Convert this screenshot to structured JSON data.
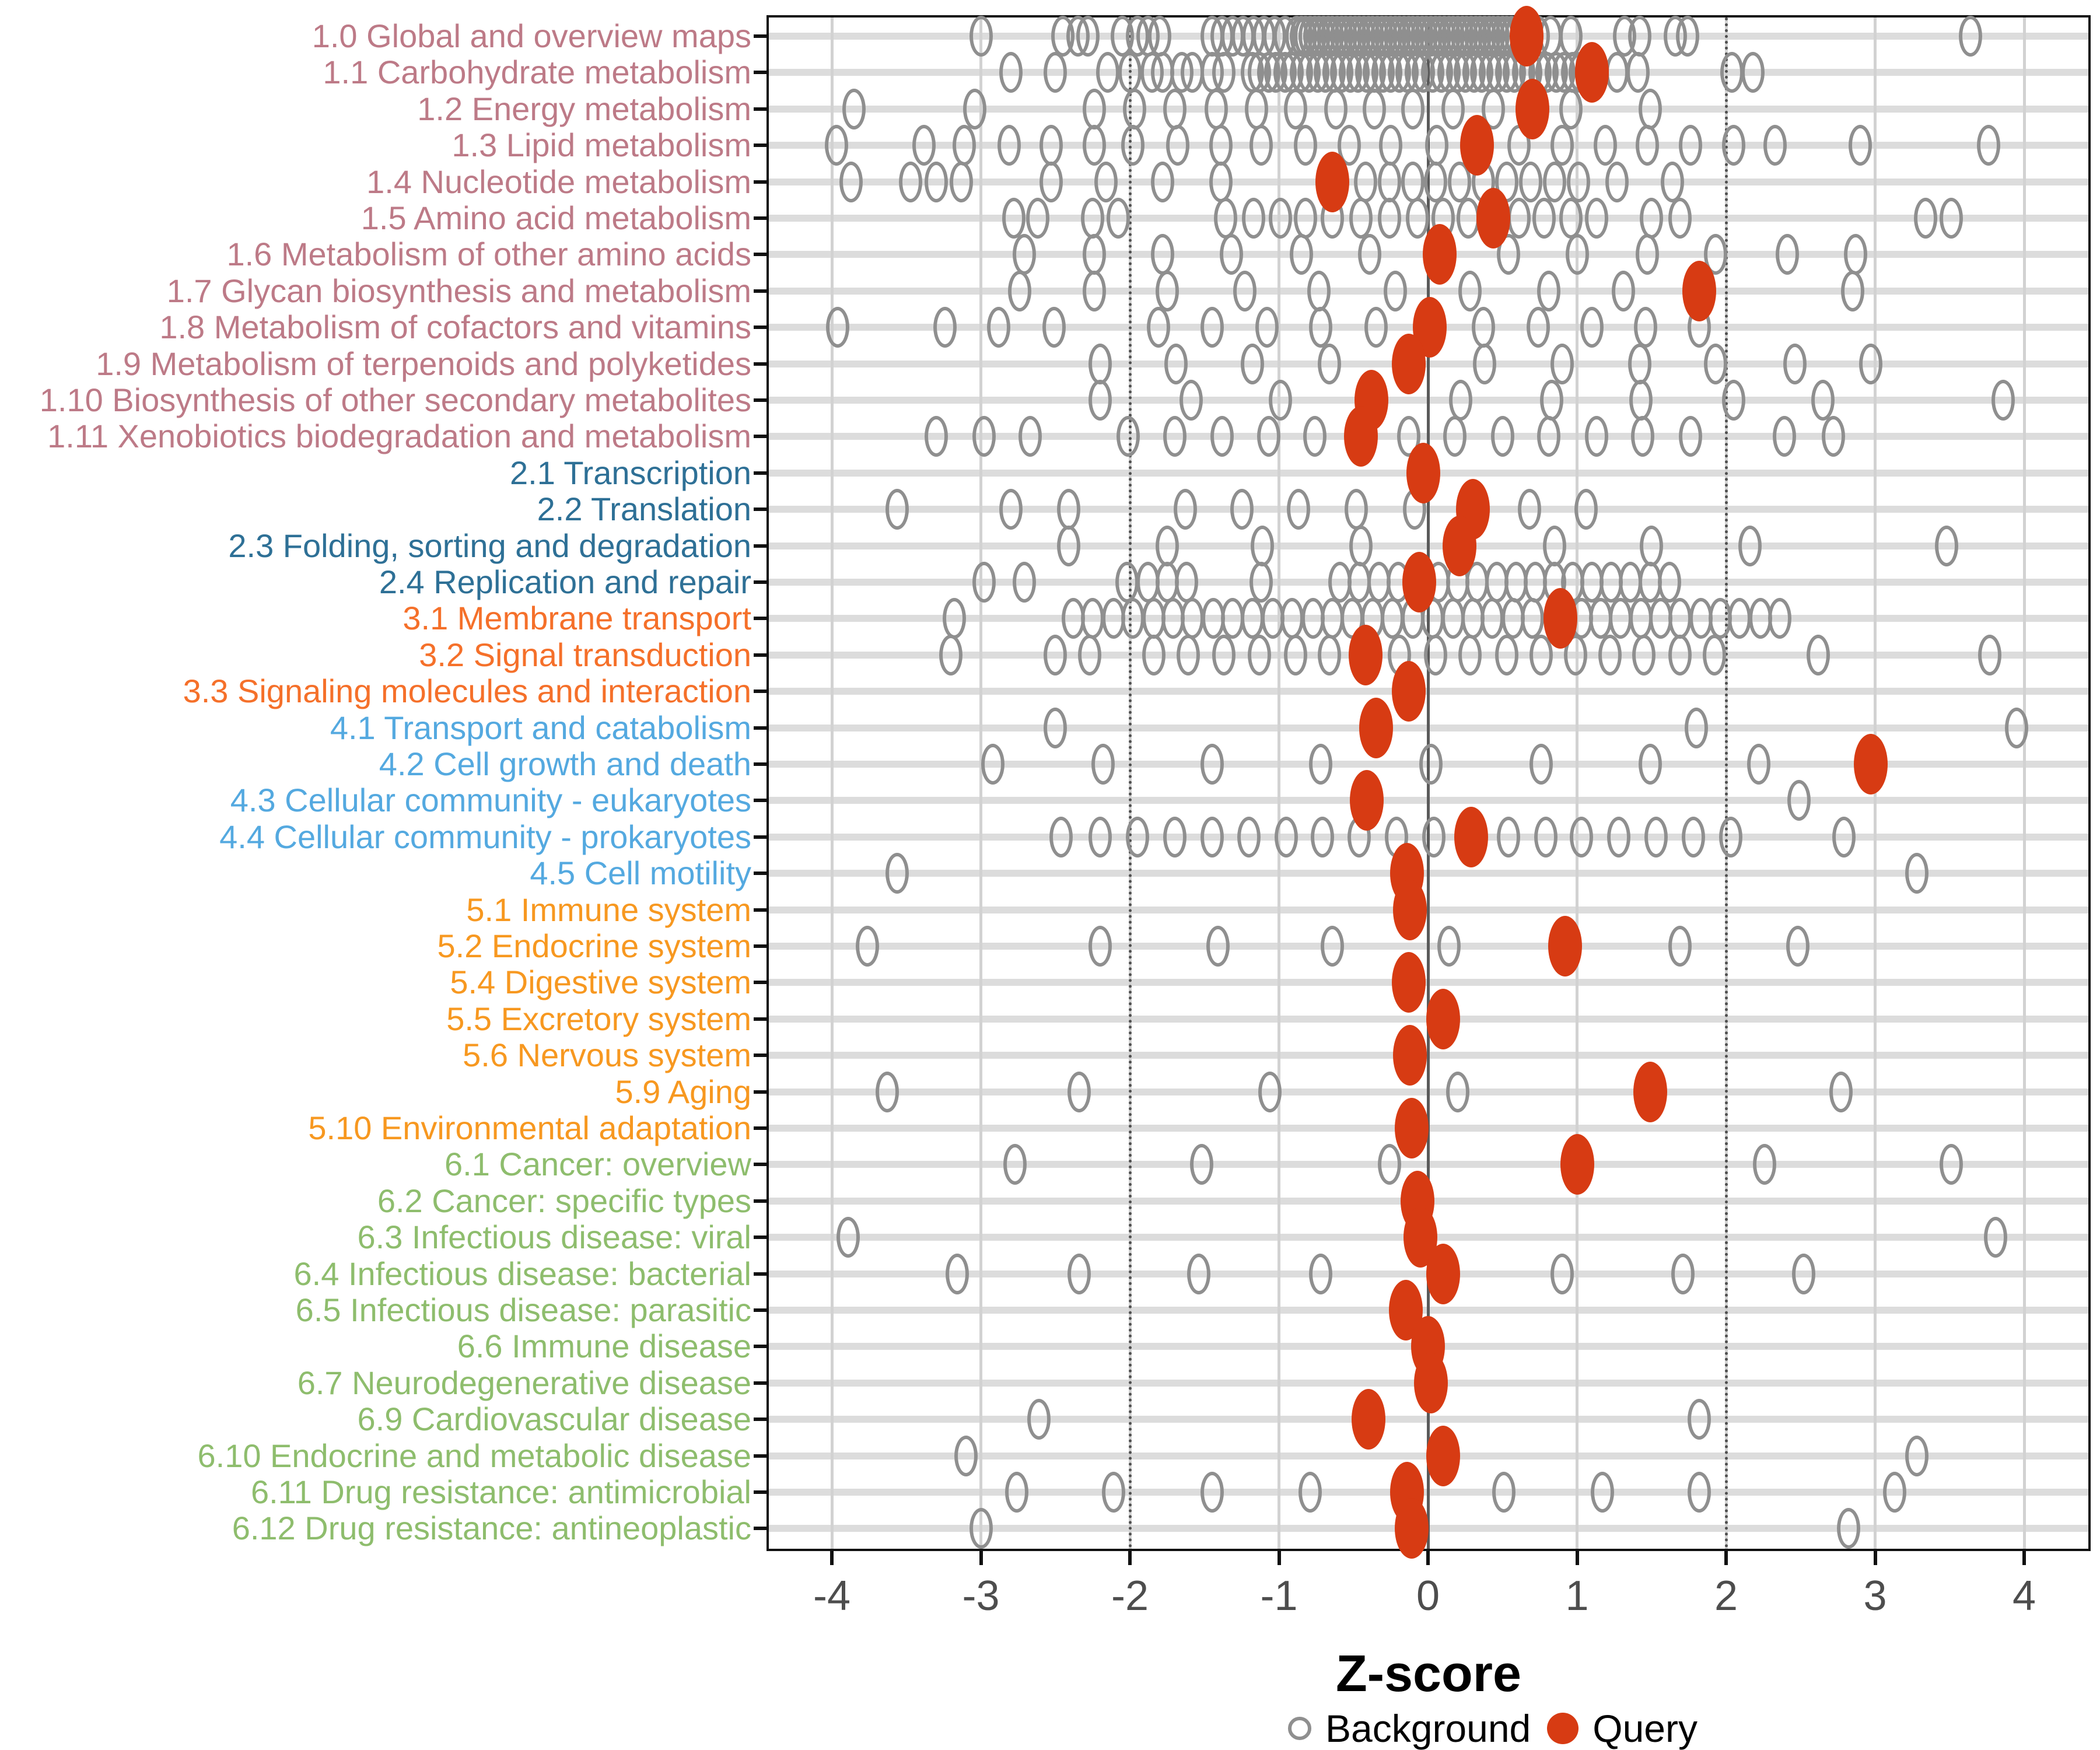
{
  "chart_data": {
    "type": "scatter",
    "title": "",
    "xlabel": "Z-score",
    "x_ticks": [
      "-4",
      "-3",
      "-2",
      "-1",
      "0",
      "1",
      "2",
      "3",
      "4"
    ],
    "x_tick_values": [
      -4,
      -3,
      -2,
      -1,
      0,
      1,
      2,
      3,
      4
    ],
    "xlim": [
      -4.42,
      4.42
    ],
    "grid": true,
    "reference_lines": {
      "solid": [
        0
      ],
      "dotted": [
        -2,
        2
      ]
    },
    "legend": {
      "background": "Background",
      "query": "Query",
      "position": "bottom"
    },
    "colors": {
      "query": "#d73b13",
      "background_stroke": "#8f8f8f",
      "group_colors": {
        "1": "#bd7a87",
        "2": "#2e7096",
        "3": "#f5702a",
        "4": "#54a9e0",
        "5": "#f79820",
        "6": "#8ebd6d"
      }
    },
    "rows": [
      {
        "label": "1.0 Global and overview maps",
        "group": "1",
        "query": 0.66,
        "background": [
          -3.0,
          -2.45,
          -2.35,
          -2.28,
          -2.05,
          -1.95,
          -1.88,
          -1.8,
          -1.45,
          -1.38,
          -1.31,
          -1.24,
          -1.17,
          -1.1,
          -1.03,
          -0.96,
          -0.88,
          -0.85,
          -0.82,
          -0.79,
          -0.76,
          -0.73,
          -0.7,
          -0.67,
          -0.64,
          -0.61,
          -0.58,
          -0.55,
          -0.52,
          -0.49,
          -0.46,
          -0.43,
          -0.4,
          -0.37,
          -0.34,
          -0.31,
          -0.28,
          -0.25,
          -0.22,
          -0.19,
          -0.16,
          -0.13,
          -0.1,
          -0.07,
          -0.04,
          -0.01,
          0.02,
          0.05,
          0.08,
          0.11,
          0.14,
          0.17,
          0.2,
          0.23,
          0.26,
          0.29,
          0.32,
          0.35,
          0.38,
          0.41,
          0.44,
          0.47,
          0.5,
          0.53,
          0.56,
          0.59,
          0.74,
          0.82,
          0.96,
          1.32,
          1.42,
          1.66,
          1.74,
          3.64
        ]
      },
      {
        "label": "1.1 Carbohydrate metabolism",
        "group": "1",
        "query": 1.1,
        "background": [
          -2.8,
          -2.5,
          -2.15,
          -2.0,
          -1.85,
          -1.78,
          -1.65,
          -1.58,
          -1.45,
          -1.37,
          -1.18,
          -1.13,
          -1.07,
          -1.02,
          -0.96,
          -0.91,
          -0.85,
          -0.8,
          -0.74,
          -0.69,
          -0.63,
          -0.58,
          -0.52,
          -0.47,
          -0.41,
          -0.36,
          -0.3,
          -0.25,
          -0.19,
          -0.14,
          -0.08,
          -0.03,
          0.03,
          0.09,
          0.14,
          0.2,
          0.25,
          0.31,
          0.36,
          0.42,
          0.47,
          0.53,
          0.58,
          0.64,
          0.69,
          0.75,
          0.8,
          0.86,
          0.91,
          0.97,
          1.02,
          1.27,
          1.41,
          2.04,
          2.18
        ]
      },
      {
        "label": "1.2 Energy metabolism",
        "group": "1",
        "query": 0.7,
        "background": [
          -3.85,
          -3.04,
          -2.24,
          -1.97,
          -1.7,
          -1.42,
          -1.15,
          -0.89,
          -0.62,
          -0.36,
          -0.1,
          0.17,
          0.44,
          0.96,
          1.49
        ]
      },
      {
        "label": "1.3 Lipid metabolism",
        "group": "1",
        "query": 0.33,
        "background": [
          -3.97,
          -3.38,
          -3.11,
          -2.81,
          -2.53,
          -2.24,
          -1.98,
          -1.68,
          -1.39,
          -1.12,
          -0.82,
          -0.53,
          -0.25,
          0.06,
          0.61,
          0.9,
          1.19,
          1.47,
          1.76,
          2.05,
          2.33,
          2.9,
          3.76
        ]
      },
      {
        "label": "1.4 Nucleotide metabolism",
        "group": "1",
        "query": -0.64,
        "background": [
          -3.87,
          -3.47,
          -3.3,
          -3.13,
          -2.53,
          -2.16,
          -1.78,
          -1.39,
          -0.42,
          -0.26,
          -0.1,
          0.05,
          0.21,
          0.37,
          0.53,
          0.69,
          0.85,
          1.01,
          1.27,
          1.64
        ]
      },
      {
        "label": "1.5 Amino acid metabolism",
        "group": "1",
        "query": 0.44,
        "background": [
          -2.78,
          -2.62,
          -2.25,
          -2.08,
          -1.36,
          -1.17,
          -0.99,
          -0.82,
          -0.64,
          -0.45,
          -0.26,
          -0.07,
          0.1,
          0.27,
          0.61,
          0.78,
          0.96,
          1.13,
          1.5,
          1.69,
          3.34,
          3.51
        ]
      },
      {
        "label": "1.6 Metabolism of other amino acids",
        "group": "1",
        "query": 0.08,
        "background": [
          -2.71,
          -2.24,
          -1.78,
          -1.32,
          -0.85,
          -0.39,
          0.54,
          1.0,
          1.47,
          1.93,
          2.41,
          2.87
        ]
      },
      {
        "label": "1.7 Glycan biosynthesis and metabolism",
        "group": "1",
        "query": 1.82,
        "background": [
          -2.74,
          -2.24,
          -1.75,
          -1.23,
          -0.73,
          -0.22,
          0.28,
          0.81,
          1.31,
          2.85
        ]
      },
      {
        "label": "1.8 Metabolism of cofactors and vitamins",
        "group": "1",
        "query": 0.01,
        "background": [
          -3.96,
          -3.24,
          -2.88,
          -2.51,
          -1.81,
          -1.45,
          -1.08,
          -0.72,
          -0.35,
          0.37,
          0.74,
          1.1,
          1.46,
          1.82
        ]
      },
      {
        "label": "1.9 Metabolism of terpenoids and polyketides",
        "group": "1",
        "query": -0.13,
        "background": [
          -2.2,
          -1.69,
          -1.18,
          -0.66,
          0.38,
          0.9,
          1.42,
          1.93,
          2.46,
          2.97
        ]
      },
      {
        "label": "1.10 Biosynthesis of other secondary metabolites",
        "group": "1",
        "query": -0.38,
        "background": [
          -2.2,
          -1.59,
          -0.99,
          0.22,
          0.83,
          1.43,
          2.05,
          2.65,
          3.86
        ]
      },
      {
        "label": "1.11 Xenobiotics biodegradation and metabolism",
        "group": "1",
        "query": -0.45,
        "background": [
          -3.3,
          -2.98,
          -2.67,
          -2.01,
          -1.7,
          -1.38,
          -1.07,
          -0.76,
          -0.13,
          0.18,
          0.5,
          0.81,
          1.13,
          1.44,
          1.76,
          2.39,
          2.72
        ]
      },
      {
        "label": "2.1 Transcription",
        "group": "2",
        "query": -0.03,
        "background": []
      },
      {
        "label": "2.2 Translation",
        "group": "2",
        "query": 0.3,
        "background": [
          -3.56,
          -2.8,
          -2.41,
          -1.63,
          -1.25,
          -0.87,
          -0.48,
          -0.09,
          0.68,
          1.06
        ]
      },
      {
        "label": "2.3 Folding, sorting and degradation",
        "group": "2",
        "query": 0.21,
        "background": [
          -2.41,
          -1.75,
          -1.11,
          -0.45,
          0.85,
          1.5,
          2.16,
          3.48
        ]
      },
      {
        "label": "2.4 Replication and repair",
        "group": "2",
        "query": -0.06,
        "background": [
          -2.98,
          -2.71,
          -2.02,
          -1.88,
          -1.75,
          -1.62,
          -1.12,
          -0.59,
          -0.46,
          -0.33,
          -0.2,
          0.07,
          0.2,
          0.33,
          0.46,
          0.59,
          0.72,
          0.85,
          0.97,
          1.1,
          1.23,
          1.36,
          1.49,
          1.62
        ]
      },
      {
        "label": "3.1 Membrane transport",
        "group": "3",
        "query": 0.89,
        "background": [
          -3.18,
          -2.38,
          -2.25,
          -2.11,
          -1.98,
          -1.84,
          -1.71,
          -1.58,
          -1.44,
          -1.31,
          -1.18,
          -1.04,
          -0.91,
          -0.77,
          -0.64,
          -0.51,
          -0.37,
          -0.24,
          -0.1,
          0.03,
          0.17,
          0.3,
          0.43,
          0.57,
          0.7,
          1.03,
          1.16,
          1.29,
          1.43,
          1.56,
          1.69,
          1.83,
          1.96,
          2.09,
          2.23,
          2.36
        ]
      },
      {
        "label": "3.2 Signal transduction",
        "group": "3",
        "query": -0.42,
        "background": [
          -3.2,
          -2.5,
          -2.27,
          -1.84,
          -1.61,
          -1.37,
          -1.13,
          -0.89,
          -0.66,
          -0.19,
          0.05,
          0.28,
          0.53,
          0.76,
          0.99,
          1.22,
          1.45,
          1.69,
          1.92,
          2.62,
          3.77
        ]
      },
      {
        "label": "3.3 Signaling molecules and interaction",
        "group": "3",
        "query": -0.13,
        "background": []
      },
      {
        "label": "4.1 Transport and catabolism",
        "group": "4",
        "query": -0.35,
        "background": [
          -2.5,
          1.8,
          3.95
        ]
      },
      {
        "label": "4.2 Cell growth and death",
        "group": "4",
        "query": 2.97,
        "background": [
          -2.92,
          -2.18,
          -1.45,
          -0.72,
          0.02,
          0.76,
          1.49,
          2.22
        ]
      },
      {
        "label": "4.3 Cellular community - eukaryotes",
        "group": "4",
        "query": -0.41,
        "background": [
          2.49
        ]
      },
      {
        "label": "4.4 Cellular community - prokaryotes",
        "group": "4",
        "query": 0.29,
        "background": [
          -2.46,
          -2.2,
          -1.95,
          -1.7,
          -1.45,
          -1.2,
          -0.95,
          -0.71,
          -0.46,
          -0.21,
          0.04,
          0.54,
          0.79,
          1.03,
          1.28,
          1.53,
          1.78,
          2.03,
          2.79
        ]
      },
      {
        "label": "4.5 Cell motility",
        "group": "4",
        "query": -0.14,
        "background": [
          -3.56,
          3.28
        ]
      },
      {
        "label": "5.1 Immune system",
        "group": "5",
        "query": -0.12,
        "background": []
      },
      {
        "label": "5.2 Endocrine system",
        "group": "5",
        "query": 0.92,
        "background": [
          -3.76,
          -2.2,
          -1.41,
          -0.64,
          0.14,
          1.69,
          2.48
        ]
      },
      {
        "label": "5.4 Digestive system",
        "group": "5",
        "query": -0.13,
        "background": []
      },
      {
        "label": "5.5 Excretory system",
        "group": "5",
        "query": 0.1,
        "background": []
      },
      {
        "label": "5.6 Nervous system",
        "group": "5",
        "query": -0.12,
        "background": []
      },
      {
        "label": "5.9 Aging",
        "group": "5",
        "query": 1.49,
        "background": [
          -3.63,
          -2.34,
          -1.06,
          0.2,
          2.77
        ]
      },
      {
        "label": "5.10 Environmental adaptation",
        "group": "5",
        "query": -0.11,
        "background": []
      },
      {
        "label": "6.1 Cancer: overview",
        "group": "6",
        "query": 1.0,
        "background": [
          -2.77,
          -1.52,
          -0.26,
          2.26,
          3.51
        ]
      },
      {
        "label": "6.2 Cancer: specific types",
        "group": "6",
        "query": -0.07,
        "background": []
      },
      {
        "label": "6.3 Infectious disease: viral",
        "group": "6",
        "query": -0.05,
        "background": [
          -3.89,
          3.81
        ]
      },
      {
        "label": "6.4 Infectious disease: bacterial",
        "group": "6",
        "query": 0.1,
        "background": [
          -3.16,
          -2.34,
          -1.54,
          -0.72,
          0.9,
          1.71,
          2.52
        ]
      },
      {
        "label": "6.5 Infectious disease: parasitic",
        "group": "6",
        "query": -0.15,
        "background": []
      },
      {
        "label": "6.6 Immune disease",
        "group": "6",
        "query": 0.0,
        "background": []
      },
      {
        "label": "6.7 Neurodegenerative disease",
        "group": "6",
        "query": 0.02,
        "background": []
      },
      {
        "label": "6.9 Cardiovascular disease",
        "group": "6",
        "query": -0.4,
        "background": [
          -2.61,
          1.82
        ]
      },
      {
        "label": "6.10 Endocrine and metabolic disease",
        "group": "6",
        "query": 0.1,
        "background": [
          -3.1,
          3.28
        ]
      },
      {
        "label": "6.11 Drug resistance: antimicrobial",
        "group": "6",
        "query": -0.14,
        "background": [
          -2.76,
          -2.11,
          -1.45,
          -0.79,
          0.51,
          1.17,
          1.82,
          3.13
        ]
      },
      {
        "label": "6.12 Drug resistance: antineoplastic",
        "group": "6",
        "query": -0.11,
        "background": [
          -3.0,
          2.82
        ]
      }
    ]
  }
}
